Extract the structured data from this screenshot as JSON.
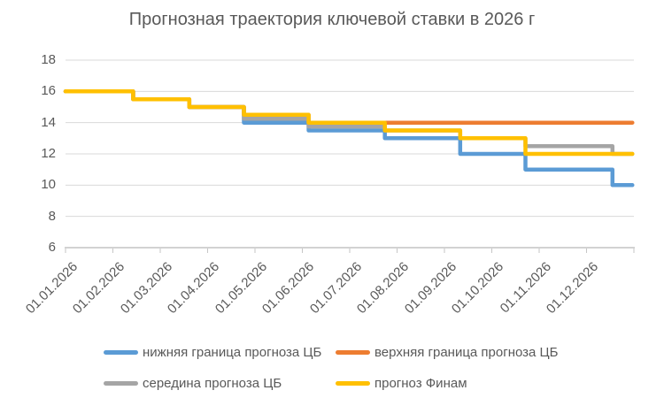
{
  "colors": {
    "grid": "#D9D9D9",
    "axis": "#D2D2D2",
    "tick": "#C6C6C6",
    "text": "#595959"
  },
  "chart_data": {
    "type": "line",
    "subtype": "step",
    "title": "Прогнозная траектория ключевой ставки в 2026 г",
    "xlabel": "",
    "ylabel": "",
    "grid": true,
    "legend_position": "bottom",
    "ylim": [
      6,
      18
    ],
    "y_ticks": [
      6,
      8,
      10,
      12,
      14,
      16,
      18
    ],
    "x_tick_labels": [
      "01.01.2026",
      "01.02.2026",
      "01.03.2026",
      "01.04.2026",
      "01.05.2026",
      "01.06.2026",
      "01.07.2026",
      "01.08.2026",
      "01.09.2026",
      "01.10.2026",
      "01.11.2026",
      "01.12.2026"
    ],
    "start_date": "01.01.2026",
    "end_date": "31.12.2026",
    "step_dates": [
      "13.02.2026",
      "20.03.2026",
      "24.04.2026",
      "05.06.2026",
      "24.07.2026",
      "11.09.2026",
      "23.10.2026",
      "18.12.2026"
    ],
    "series": [
      {
        "key": "lower-bound-cb",
        "name": "нижняя граница прогноза ЦБ",
        "color": "#5B9BD5",
        "values": [
          16,
          15.5,
          15,
          14,
          13.5,
          13,
          12,
          11,
          10
        ]
      },
      {
        "key": "upper-bound-cb",
        "name": "верхняя граница прогноза ЦБ",
        "color": "#ED7D31",
        "values": [
          16,
          15.5,
          15,
          14.5,
          14,
          14,
          14,
          14,
          14
        ]
      },
      {
        "key": "mid-cb",
        "name": "середина прогноза ЦБ",
        "color": "#A5A5A5",
        "values": [
          16,
          15.5,
          15,
          14.25,
          13.75,
          13.5,
          13,
          12.5,
          12
        ]
      },
      {
        "key": "finam-forecast",
        "name": "прогноз Финам",
        "color": "#FFC000",
        "values": [
          16,
          15.5,
          15,
          14.5,
          14,
          13.5,
          13,
          12,
          12
        ]
      }
    ]
  }
}
